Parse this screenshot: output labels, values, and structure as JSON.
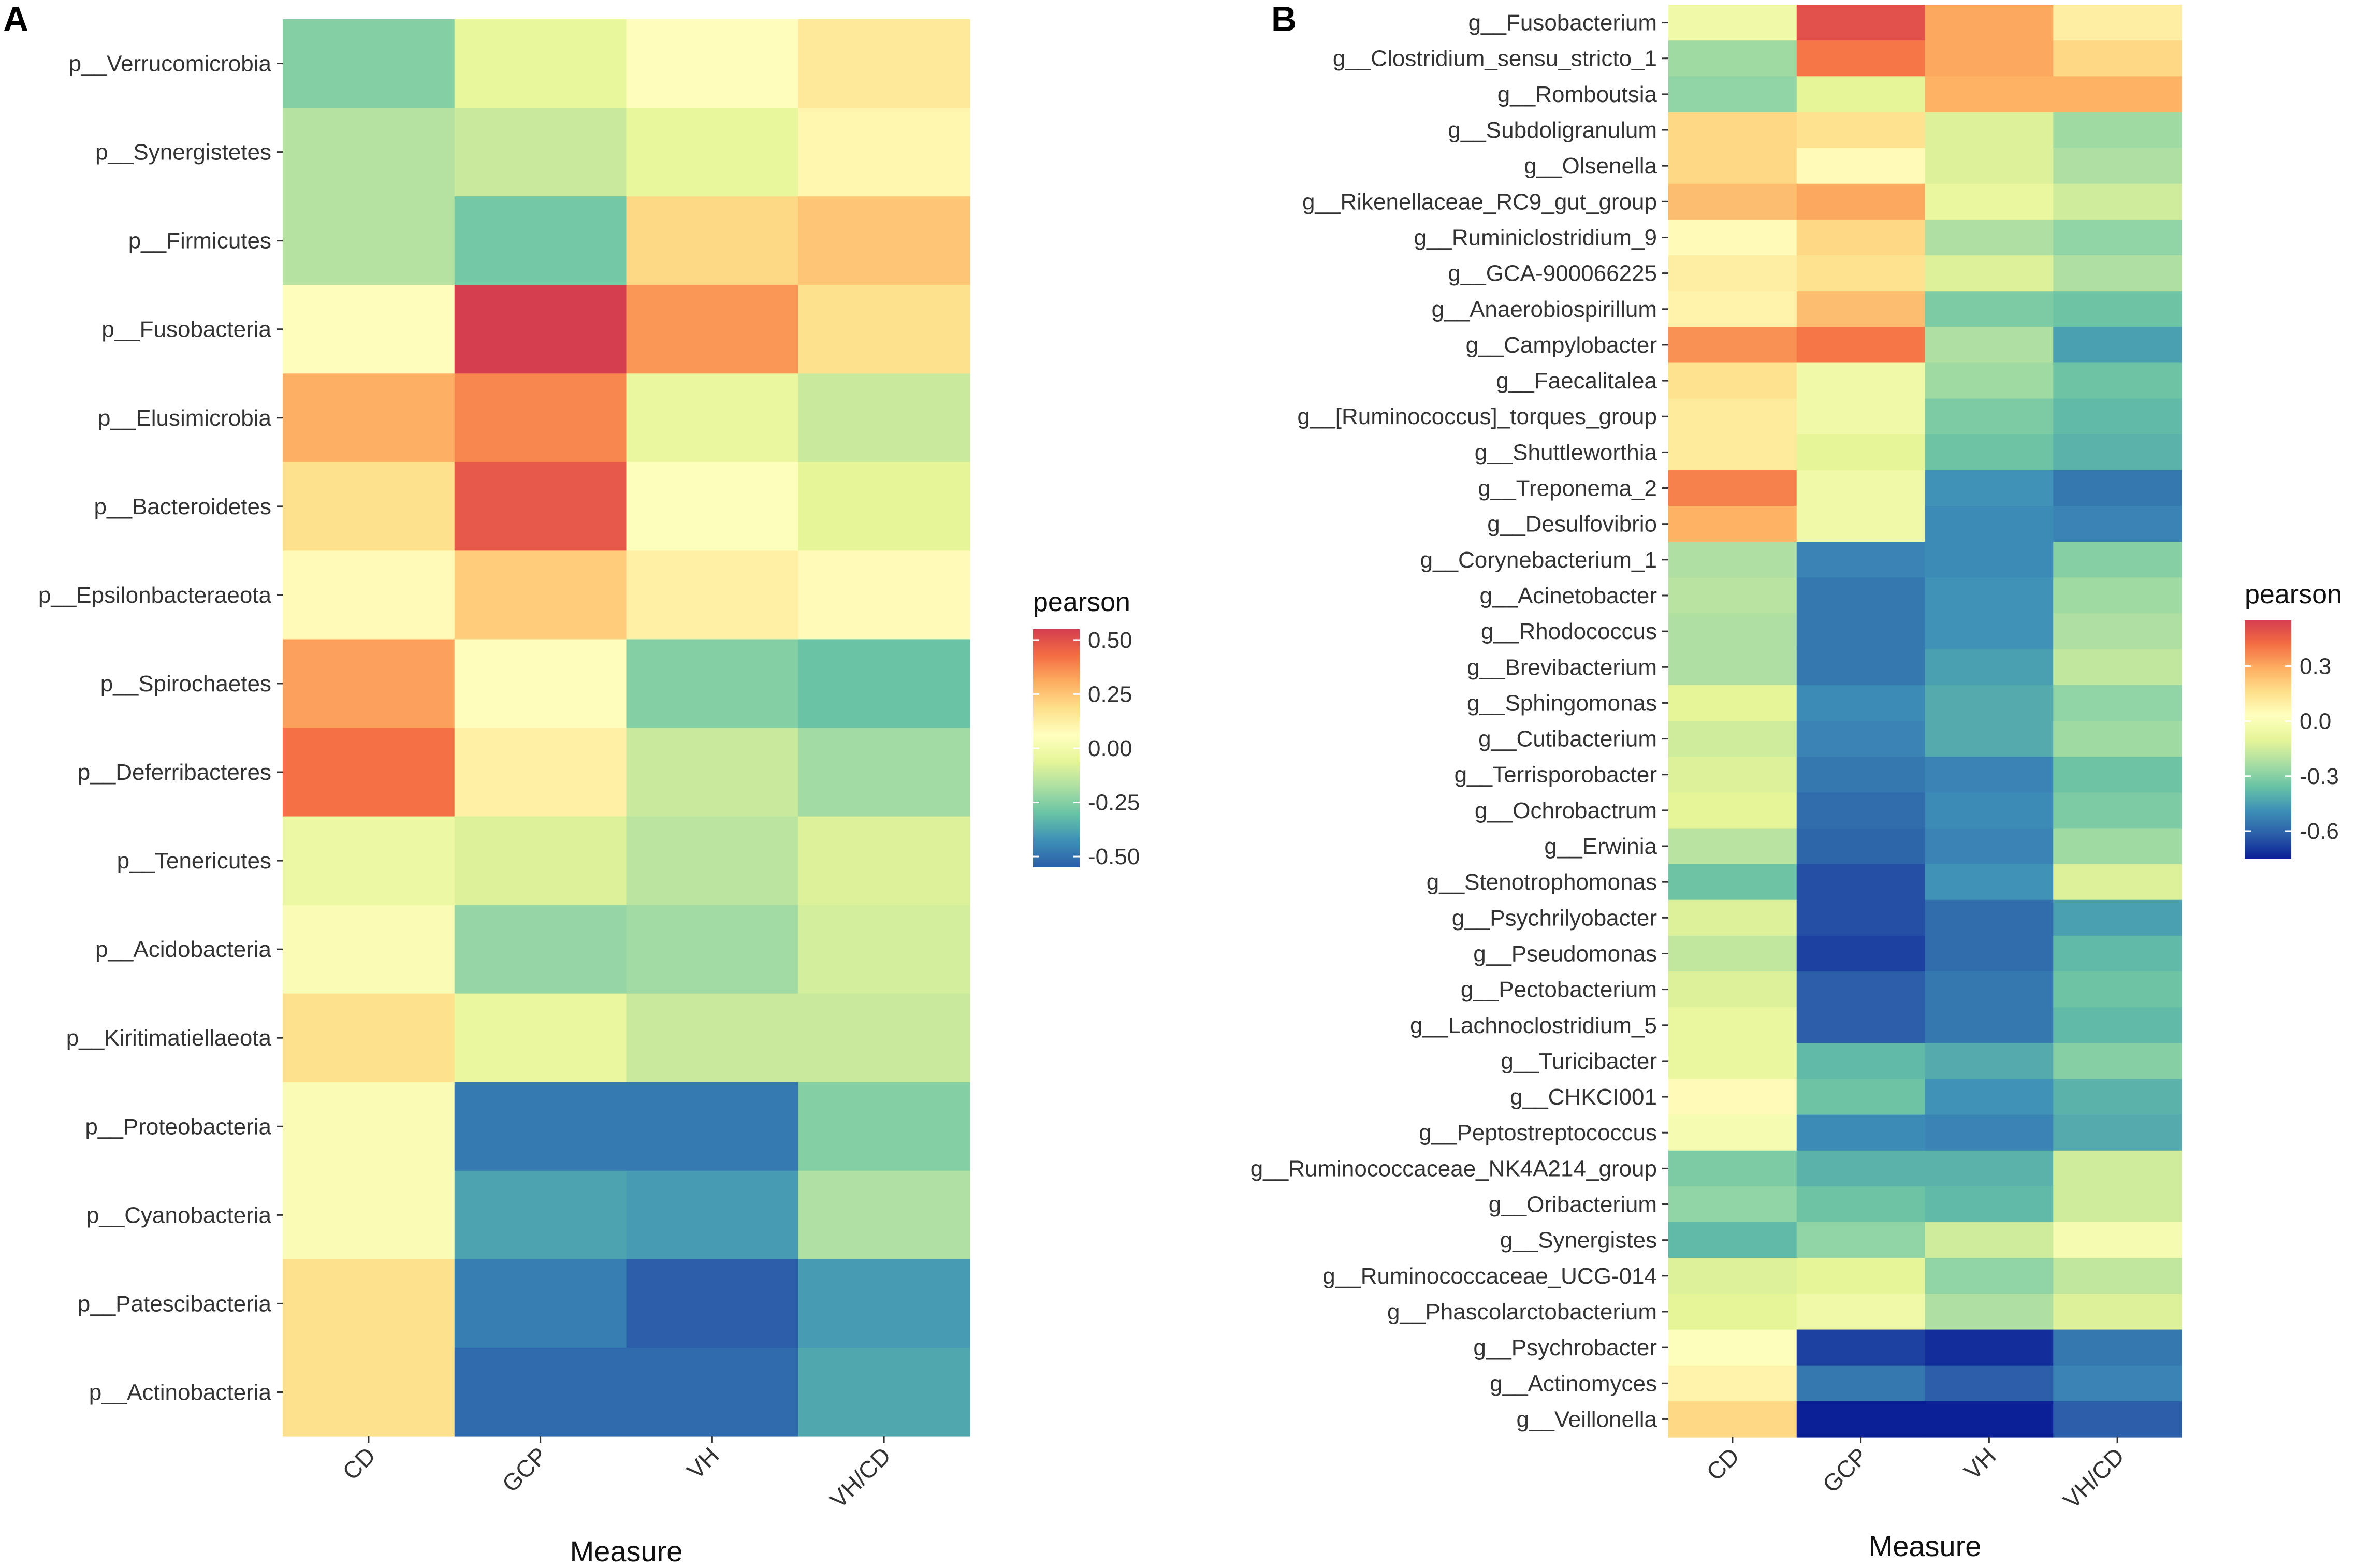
{
  "chart_data": [
    {
      "type": "heatmap",
      "panel": "A",
      "xlabel": "Measure",
      "columns": [
        "CD",
        "GCP",
        "VH",
        "VH/CD"
      ],
      "rows": [
        "p__Verrucomicrobia",
        "p__Synergistetes",
        "p__Firmicutes",
        "p__Fusobacteria",
        "p__Elusimicrobia",
        "p__Bacteroidetes",
        "p__Epsilonbacteraeota",
        "p__Spirochaetes",
        "p__Deferribacteres",
        "p__Tenericutes",
        "p__Acidobacteria",
        "p__Kiritimatiellaeota",
        "p__Proteobacteria",
        "p__Cyanobacteria",
        "p__Patescibacteria",
        "p__Actinobacteria"
      ],
      "values": [
        [
          -0.25,
          -0.05,
          0.07,
          0.15
        ],
        [
          -0.16,
          -0.12,
          -0.05,
          0.1
        ],
        [
          -0.16,
          -0.28,
          0.2,
          0.25
        ],
        [
          0.07,
          0.55,
          0.35,
          0.18
        ],
        [
          0.3,
          0.38,
          -0.04,
          -0.12
        ],
        [
          0.18,
          0.48,
          0.05,
          -0.06
        ],
        [
          0.08,
          0.23,
          0.12,
          0.08
        ],
        [
          0.33,
          0.07,
          -0.25,
          -0.3
        ],
        [
          0.42,
          0.12,
          -0.12,
          -0.2
        ],
        [
          -0.03,
          -0.08,
          -0.15,
          -0.08
        ],
        [
          0.03,
          -0.22,
          -0.2,
          -0.1
        ],
        [
          0.18,
          -0.04,
          -0.12,
          -0.12
        ],
        [
          0.03,
          -0.48,
          -0.48,
          -0.25
        ],
        [
          0.03,
          -0.38,
          -0.4,
          -0.17
        ],
        [
          0.18,
          -0.47,
          -0.58,
          -0.4
        ],
        [
          0.18,
          -0.52,
          -0.52,
          -0.37
        ]
      ],
      "legend": {
        "title": "pearson",
        "range": [
          -0.55,
          0.55
        ],
        "ticks": [
          0.5,
          0.25,
          0.0,
          -0.25,
          -0.5
        ],
        "tick_labels": [
          "0.50",
          "0.25",
          "0.00",
          "-0.25",
          "-0.50"
        ]
      }
    },
    {
      "type": "heatmap",
      "panel": "B",
      "xlabel": "Measure",
      "columns": [
        "CD",
        "GCP",
        "VH",
        "VH/CD"
      ],
      "rows": [
        "g__Fusobacterium",
        "g__Clostridium_sensu_stricto_1",
        "g__Romboutsia",
        "g__Subdoligranulum",
        "g__Olsenella",
        "g__Rikenellaceae_RC9_gut_group",
        "g__Ruminiclostridium_9",
        "g__GCA-900066225",
        "g__Anaerobiospirillum",
        "g__Campylobacter",
        "g__Faecalitalea",
        "g__[Ruminococcus]_torques_group",
        "g__Shuttleworthia",
        "g__Treponema_2",
        "g__Desulfovibrio",
        "g__Corynebacterium_1",
        "g__Acinetobacter",
        "g__Rhodococcus",
        "g__Brevibacterium",
        "g__Sphingomonas",
        "g__Cutibacterium",
        "g__Terrisporobacter",
        "g__Ochrobactrum",
        "g__Erwinia",
        "g__Stenotrophomonas",
        "g__Psychrilyobacter",
        "g__Pseudomonas",
        "g__Pectobacterium",
        "g__Lachnoclostridium_5",
        "g__Turicibacter",
        "g__CHKCI001",
        "g__Peptostreptococcus",
        "g__Ruminococcaceae_NK4A214_group",
        "g__Oribacterium",
        "g__Synergistes",
        "g__Ruminococcaceae_UCG-014",
        "g__Phascolarctobacterium",
        "g__Psychrobacter",
        "g__Actinomyces",
        "g__Veillonella"
      ],
      "values": [
        [
          -0.05,
          0.5,
          0.3,
          0.1
        ],
        [
          -0.25,
          0.4,
          0.3,
          0.18
        ],
        [
          -0.28,
          -0.1,
          0.28,
          0.28
        ],
        [
          0.18,
          0.15,
          -0.12,
          -0.25
        ],
        [
          0.18,
          0.05,
          -0.12,
          -0.22
        ],
        [
          0.25,
          0.3,
          -0.08,
          -0.15
        ],
        [
          0.05,
          0.18,
          -0.22,
          -0.28
        ],
        [
          0.1,
          0.15,
          -0.12,
          -0.22
        ],
        [
          0.08,
          0.25,
          -0.32,
          -0.35
        ],
        [
          0.35,
          0.4,
          -0.22,
          -0.45
        ],
        [
          0.15,
          -0.05,
          -0.25,
          -0.35
        ],
        [
          0.12,
          -0.05,
          -0.32,
          -0.38
        ],
        [
          0.12,
          -0.1,
          -0.35,
          -0.4
        ],
        [
          0.38,
          -0.05,
          -0.48,
          -0.55
        ],
        [
          0.28,
          -0.05,
          -0.5,
          -0.52
        ],
        [
          -0.22,
          -0.52,
          -0.5,
          -0.3
        ],
        [
          -0.2,
          -0.55,
          -0.48,
          -0.25
        ],
        [
          -0.22,
          -0.55,
          -0.48,
          -0.22
        ],
        [
          -0.22,
          -0.55,
          -0.45,
          -0.18
        ],
        [
          -0.1,
          -0.5,
          -0.42,
          -0.28
        ],
        [
          -0.15,
          -0.52,
          -0.42,
          -0.25
        ],
        [
          -0.12,
          -0.55,
          -0.52,
          -0.35
        ],
        [
          -0.1,
          -0.58,
          -0.5,
          -0.32
        ],
        [
          -0.2,
          -0.6,
          -0.52,
          -0.25
        ],
        [
          -0.35,
          -0.65,
          -0.48,
          -0.12
        ],
        [
          -0.12,
          -0.65,
          -0.58,
          -0.45
        ],
        [
          -0.18,
          -0.68,
          -0.58,
          -0.38
        ],
        [
          -0.12,
          -0.62,
          -0.55,
          -0.35
        ],
        [
          -0.08,
          -0.62,
          -0.55,
          -0.38
        ],
        [
          -0.08,
          -0.38,
          -0.42,
          -0.3
        ],
        [
          0.05,
          -0.35,
          -0.48,
          -0.4
        ],
        [
          -0.02,
          -0.5,
          -0.52,
          -0.42
        ],
        [
          -0.32,
          -0.4,
          -0.4,
          -0.15
        ],
        [
          -0.28,
          -0.35,
          -0.38,
          -0.15
        ],
        [
          -0.38,
          -0.28,
          -0.15,
          -0.02
        ],
        [
          -0.12,
          -0.1,
          -0.28,
          -0.18
        ],
        [
          -0.1,
          -0.05,
          -0.22,
          -0.12
        ],
        [
          0.02,
          -0.68,
          -0.72,
          -0.55
        ],
        [
          0.08,
          -0.55,
          -0.62,
          -0.52
        ],
        [
          0.18,
          -0.75,
          -0.75,
          -0.62
        ]
      ],
      "legend": {
        "title": "pearson",
        "range": [
          -0.75,
          0.55
        ],
        "ticks": [
          0.3,
          0.0,
          -0.3,
          -0.6
        ],
        "tick_labels": [
          "0.3",
          "0.0",
          "-0.3",
          "-0.6"
        ]
      }
    }
  ],
  "panels": {
    "a_letter": "A",
    "b_letter": "B"
  },
  "colors": {
    "scale": [
      "#2b5ea8",
      "#3d8fb7",
      "#67c2a5",
      "#aadea3",
      "#e6f598",
      "#ffffbf",
      "#fee08b",
      "#fdae61",
      "#f46d43",
      "#d53e4f"
    ],
    "scale_b": [
      "#0b1f96",
      "#2b5ea8",
      "#3d8fb7",
      "#67c2a5",
      "#aadea3",
      "#e6f598",
      "#ffffbf",
      "#fee08b",
      "#fdae61",
      "#f46d43",
      "#d53e4f"
    ]
  }
}
